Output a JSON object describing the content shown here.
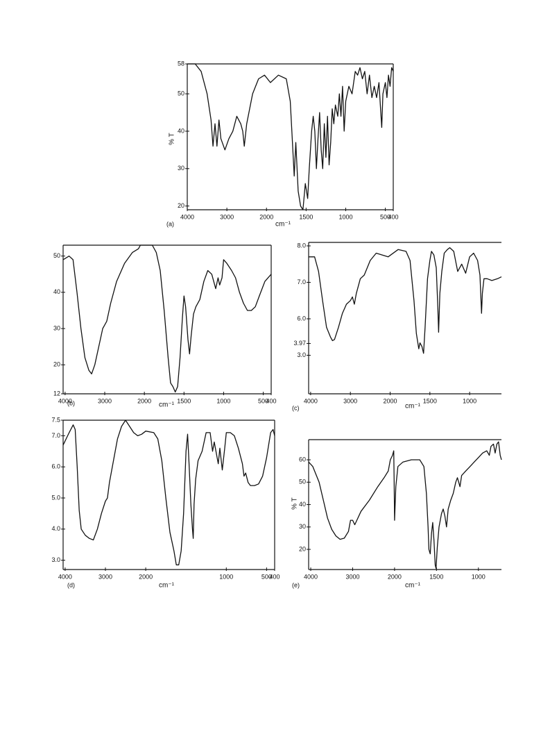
{
  "chart_data": [
    {
      "type": "line",
      "panel_label": "(a)",
      "ylabel": "% T",
      "xlabel": "cm⁻¹",
      "xlim": [
        4000,
        400
      ],
      "ylim": [
        19,
        58
      ],
      "x_scale_change": {
        "at": 2000,
        "factor": 2
      },
      "xticks": [
        4000,
        3000,
        2000,
        1500,
        1000,
        500,
        400
      ],
      "yticks": [
        58,
        50,
        40,
        30,
        20
      ],
      "series": [
        {
          "color": "#111111",
          "x": [
            4000,
            3800,
            3650,
            3500,
            3400,
            3350,
            3300,
            3250,
            3200,
            3150,
            3050,
            2950,
            2850,
            2750,
            2650,
            2600,
            2560,
            2500,
            2350,
            2200,
            2050,
            1950,
            1850,
            1750,
            1700,
            1680,
            1650,
            1630,
            1600,
            1570,
            1540,
            1510,
            1480,
            1460,
            1430,
            1410,
            1390,
            1370,
            1350,
            1330,
            1310,
            1290,
            1270,
            1250,
            1230,
            1210,
            1190,
            1170,
            1150,
            1130,
            1100,
            1080,
            1060,
            1040,
            1020,
            1000,
            960,
            920,
            880,
            850,
            820,
            790,
            760,
            730,
            700,
            670,
            640,
            610,
            580,
            560,
            545,
            530,
            500,
            480,
            460,
            440,
            420,
            400
          ],
          "values": [
            58,
            58,
            56,
            50,
            43,
            36,
            42,
            36,
            43,
            38,
            35,
            38,
            40,
            44,
            42,
            40,
            36,
            42,
            50,
            54,
            55,
            53,
            55,
            54,
            48,
            40,
            28,
            37,
            24,
            20,
            19,
            26,
            22,
            30,
            40,
            44,
            40,
            30,
            38,
            45,
            35,
            30,
            42,
            33,
            44,
            31,
            37,
            46,
            42,
            47,
            44,
            50,
            44,
            52,
            40,
            48,
            52,
            50,
            56,
            55,
            57,
            54,
            56,
            50,
            55,
            49,
            52,
            49,
            53,
            46,
            41,
            50,
            53,
            49,
            55,
            52,
            57,
            56
          ]
        }
      ]
    },
    {
      "type": "line",
      "panel_label": "(b)",
      "xlabel": "cm⁻¹",
      "xlim": [
        4050,
        400
      ],
      "ylim": [
        12,
        53
      ],
      "x_scale_change": {
        "at": 2000,
        "factor": 2
      },
      "xticks": [
        4000,
        3000,
        2000,
        1500,
        1000,
        500,
        400
      ],
      "yticks": [
        50,
        40,
        30,
        20,
        12
      ],
      "series": [
        {
          "color": "#111111",
          "x": [
            4050,
            3900,
            3800,
            3700,
            3600,
            3500,
            3400,
            3330,
            3250,
            3150,
            3050,
            3000,
            2950,
            2850,
            2700,
            2500,
            2300,
            2150,
            2100,
            2000,
            1900,
            1850,
            1800,
            1750,
            1700,
            1670,
            1640,
            1610,
            1580,
            1550,
            1520,
            1500,
            1480,
            1450,
            1430,
            1410,
            1380,
            1350,
            1300,
            1250,
            1200,
            1150,
            1100,
            1070,
            1050,
            1020,
            1000,
            960,
            900,
            850,
            800,
            750,
            700,
            650,
            600,
            550,
            480,
            400
          ],
          "values": [
            49,
            50,
            49,
            40,
            30,
            22,
            18.5,
            17.5,
            20,
            25,
            30,
            31,
            32,
            37,
            43,
            48,
            51,
            52,
            53,
            53,
            53,
            51,
            46,
            35,
            22,
            15,
            14,
            12.5,
            14,
            22,
            33,
            39,
            36,
            27,
            23,
            28,
            34,
            36,
            38,
            43,
            46,
            45,
            41,
            44,
            42,
            44,
            49,
            48,
            46,
            44,
            40,
            37,
            35,
            35,
            36,
            39,
            43,
            45
          ]
        }
      ]
    },
    {
      "type": "line",
      "panel_label": "(c)",
      "xlabel": "cm⁻¹",
      "xlim": [
        4050,
        600
      ],
      "y_scale": "tick-spaced",
      "x_scale_change": {
        "at": 2000,
        "factor": 2
      },
      "xticks": [
        4000,
        3000,
        2000,
        1500,
        1000
      ],
      "yticks": [
        {
          "value": 8,
          "label": "8.0"
        },
        {
          "value": 7,
          "label": "7.0"
        },
        {
          "value": 6,
          "label": "6.0"
        },
        {
          "value": 3,
          "label": "3.0"
        },
        3.97
      ],
      "series": [
        {
          "color": "#111111",
          "x": [
            4050,
            3900,
            3800,
            3700,
            3600,
            3500,
            3450,
            3400,
            3300,
            3200,
            3100,
            3000,
            2950,
            2900,
            2850,
            2750,
            2650,
            2500,
            2350,
            2200,
            2050,
            1900,
            1800,
            1750,
            1700,
            1670,
            1640,
            1625,
            1600,
            1580,
            1560,
            1530,
            1500,
            1480,
            1450,
            1420,
            1400,
            1390,
            1375,
            1350,
            1320,
            1280,
            1250,
            1200,
            1150,
            1100,
            1050,
            1000,
            950,
            900,
            870,
            850,
            840,
            820,
            780,
            720,
            650,
            600
          ],
          "values": [
            7.7,
            7.7,
            7.3,
            6.5,
            5.3,
            4.5,
            4.2,
            4.3,
            5.3,
            6.15,
            6.4,
            6.5,
            6.6,
            6.4,
            6.7,
            7.1,
            7.2,
            7.6,
            7.8,
            7.75,
            7.7,
            7.9,
            7.85,
            7.6,
            6.5,
            4.8,
            3.53,
            4.02,
            3.71,
            3.16,
            5.3,
            7.1,
            7.6,
            7.85,
            7.75,
            7.4,
            6.3,
            4.9,
            6.7,
            7.3,
            7.8,
            7.9,
            7.95,
            7.85,
            7.3,
            7.5,
            7.25,
            7.7,
            7.8,
            7.6,
            7.2,
            6.15,
            6.7,
            7.1,
            7.1,
            7.05,
            7.1,
            7.15
          ]
        }
      ]
    },
    {
      "type": "line",
      "panel_label": "(d)",
      "xlabel": "cm⁻¹",
      "xlim": [
        4050,
        400
      ],
      "ylim": [
        2.7,
        7.5
      ],
      "x_scale_change": {
        "at": 2000,
        "factor": 2
      },
      "xticks": [
        4000,
        3000,
        2000,
        1000,
        500,
        400
      ],
      "yticks": [
        7.5,
        {
          "value": 7,
          "label": "7.0"
        },
        {
          "value": 6,
          "label": "6.0"
        },
        {
          "value": 5,
          "label": "5.0"
        },
        {
          "value": 4,
          "label": "4.0"
        },
        {
          "value": 3,
          "label": "3.0"
        }
      ],
      "series": [
        {
          "color": "#111111",
          "x": [
            4050,
            3900,
            3800,
            3750,
            3700,
            3650,
            3600,
            3500,
            3400,
            3300,
            3200,
            3100,
            3000,
            2950,
            2900,
            2800,
            2700,
            2600,
            2500,
            2400,
            2300,
            2200,
            2100,
            2000,
            1900,
            1850,
            1800,
            1750,
            1700,
            1650,
            1620,
            1590,
            1560,
            1530,
            1500,
            1480,
            1460,
            1440,
            1420,
            1410,
            1400,
            1380,
            1350,
            1300,
            1250,
            1200,
            1170,
            1150,
            1100,
            1080,
            1050,
            1020,
            1000,
            950,
            900,
            850,
            800,
            780,
            760,
            730,
            700,
            650,
            600,
            550,
            500,
            450,
            420,
            400
          ],
          "values": [
            6.7,
            7.1,
            7.35,
            7.2,
            6.0,
            4.6,
            4.0,
            3.8,
            3.7,
            3.65,
            4.0,
            4.5,
            4.9,
            5.0,
            5.5,
            6.2,
            6.9,
            7.3,
            7.5,
            7.3,
            7.1,
            7.0,
            7.05,
            7.15,
            7.1,
            6.9,
            6.2,
            5.0,
            3.9,
            3.3,
            2.85,
            2.85,
            3.3,
            4.5,
            6.5,
            7.05,
            6.0,
            4.8,
            4.0,
            3.7,
            4.8,
            5.6,
            6.2,
            6.5,
            7.1,
            7.1,
            6.5,
            6.8,
            6.1,
            6.6,
            5.9,
            6.6,
            7.1,
            7.1,
            7.0,
            6.6,
            6.1,
            5.7,
            5.8,
            5.5,
            5.4,
            5.4,
            5.45,
            5.7,
            6.3,
            7.1,
            7.2,
            7.0
          ]
        }
      ]
    },
    {
      "type": "line",
      "panel_label": "(e)",
      "ylabel": "% T",
      "xlabel": "cm⁻¹",
      "xlim": [
        4050,
        725
      ],
      "ylim": [
        11,
        69
      ],
      "x_scale_change": {
        "at": 2000,
        "factor": 2
      },
      "xticks": [
        4000,
        3000,
        2000,
        1500,
        1000
      ],
      "yticks": [
        60,
        50,
        40,
        30,
        20
      ],
      "series": [
        {
          "color": "#111111",
          "x": [
            4050,
            3950,
            3800,
            3700,
            3600,
            3500,
            3400,
            3300,
            3200,
            3100,
            3050,
            3000,
            2950,
            2900,
            2800,
            2600,
            2400,
            2250,
            2150,
            2100,
            2050,
            2020,
            2010,
            2000,
            1985,
            1960,
            1900,
            1800,
            1700,
            1650,
            1620,
            1600,
            1590,
            1575,
            1560,
            1545,
            1530,
            1515,
            1505,
            1490,
            1470,
            1440,
            1420,
            1400,
            1380,
            1360,
            1330,
            1300,
            1270,
            1250,
            1220,
            1200,
            1150,
            1100,
            1050,
            1000,
            950,
            900,
            870,
            850,
            820,
            800,
            780,
            760,
            740,
            725
          ],
          "values": [
            59,
            57,
            50,
            42,
            34,
            29,
            26,
            24.5,
            25,
            28,
            33,
            33,
            31,
            33,
            37,
            42,
            48,
            52,
            55,
            60,
            62,
            64,
            50,
            33,
            48,
            57,
            59,
            60,
            60,
            57,
            45,
            30,
            20,
            18,
            27,
            32,
            24,
            13,
            11.5,
            21,
            30,
            36,
            38,
            35,
            30,
            38,
            42,
            45,
            50,
            52,
            48,
            53,
            55,
            57,
            59,
            61,
            63,
            64,
            62,
            66,
            67,
            63,
            67,
            68,
            62,
            60
          ]
        }
      ]
    }
  ]
}
